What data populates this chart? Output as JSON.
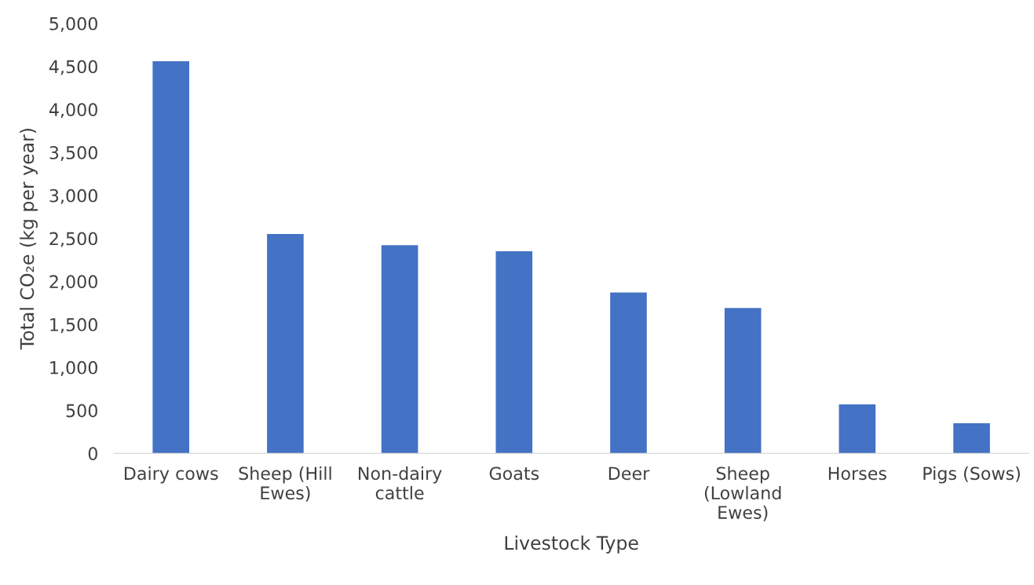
{
  "chart_data": {
    "type": "bar",
    "xlabel": "Livestock Type",
    "ylabel": "Total CO₂e (kg per year)",
    "categories": [
      "Dairy cows",
      "Sheep (Hill Ewes)",
      "Non-dairy cattle",
      "Goats",
      "Deer",
      "Sheep (Lowland Ewes)",
      "Horses",
      "Pigs (Sows)"
    ],
    "values": [
      4560,
      2550,
      2420,
      2350,
      1870,
      1690,
      570,
      350
    ],
    "color": "#4472c4",
    "ylim": [
      0,
      5000
    ],
    "yticks": [
      0,
      500,
      {
        "value": 1000,
        "label": "1,000"
      },
      {
        "value": 1500,
        "label": "1,500"
      },
      {
        "value": 2000,
        "label": "2,000"
      },
      {
        "value": 2500,
        "label": "2,500"
      },
      {
        "value": 3000,
        "label": "3,000"
      },
      {
        "value": 3500,
        "label": "3,500"
      },
      {
        "value": 4000,
        "label": "4,000"
      },
      {
        "value": 4500,
        "label": "4,500"
      },
      {
        "value": 5000,
        "label": "5,000"
      }
    ],
    "grid": false,
    "legend": false
  }
}
